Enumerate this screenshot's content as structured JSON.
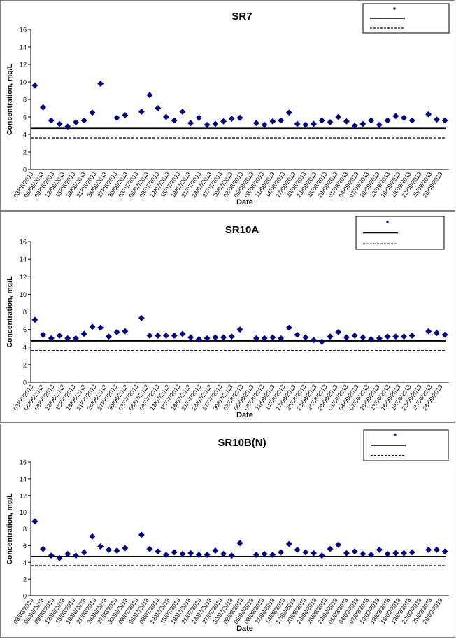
{
  "charts": [
    {
      "title": "SR7",
      "ylabel": "Concentration, mg/L",
      "xlabel": "Date",
      "ylim": [
        0,
        16
      ],
      "yticks": [
        0,
        2,
        4,
        6,
        8,
        10,
        12,
        14,
        16
      ],
      "xtick_labels": [
        "03/06/2013",
        "06/06/2013",
        "09/06/2013",
        "12/06/2013",
        "15/06/2013",
        "18/06/2013",
        "21/06/2013",
        "24/06/2013",
        "27/06/2013",
        "30/06/2013",
        "03/07/2013",
        "06/07/2013",
        "09/07/2013",
        "12/07/2013",
        "15/07/2013",
        "18/07/2013",
        "21/07/2013",
        "24/07/2013",
        "27/07/2013",
        "30/07/2013",
        "02/08/2013",
        "05/08/2013",
        "08/08/2013",
        "11/08/2013",
        "14/08/2013",
        "17/08/2013",
        "20/08/2013",
        "23/08/2013",
        "26/08/2013",
        "29/08/2013",
        "01/09/2013",
        "04/09/2013",
        "07/09/2013",
        "10/09/2013",
        "13/09/2013",
        "16/09/2013",
        "19/09/2013",
        "22/09/2013",
        "25/09/2013",
        "28/09/2013"
      ],
      "legend_entries": [
        "",
        "",
        ""
      ],
      "upper_limit": 4.7,
      "lower_limit": 3.6,
      "series": [
        {
          "type": "scatter",
          "color": "#000080",
          "points": [
            [
              0,
              9.6
            ],
            [
              1,
              7.1
            ],
            [
              2,
              5.6
            ],
            [
              3,
              5.2
            ],
            [
              4,
              4.9
            ],
            [
              5,
              5.4
            ],
            [
              6,
              5.6
            ],
            [
              7,
              6.5
            ],
            [
              8,
              9.8
            ],
            [
              10,
              5.9
            ],
            [
              11,
              6.2
            ],
            [
              13,
              6.6
            ],
            [
              14,
              8.5
            ],
            [
              15,
              7.0
            ],
            [
              16,
              6.0
            ],
            [
              17,
              5.6
            ],
            [
              18,
              6.6
            ],
            [
              19,
              5.3
            ],
            [
              20,
              5.9
            ],
            [
              21,
              5.1
            ],
            [
              22,
              5.2
            ],
            [
              23,
              5.5
            ],
            [
              24,
              5.8
            ],
            [
              25,
              5.9
            ],
            [
              27,
              5.3
            ],
            [
              28,
              5.1
            ],
            [
              29,
              5.5
            ],
            [
              30,
              5.6
            ],
            [
              31,
              6.5
            ],
            [
              32,
              5.2
            ],
            [
              33,
              5.1
            ],
            [
              34,
              5.2
            ],
            [
              35,
              5.6
            ],
            [
              36,
              5.4
            ],
            [
              37,
              6.0
            ],
            [
              38,
              5.5
            ],
            [
              39,
              5.0
            ],
            [
              40,
              5.2
            ],
            [
              41,
              5.6
            ],
            [
              42,
              5.1
            ],
            [
              43,
              5.6
            ],
            [
              44,
              6.1
            ],
            [
              45,
              5.9
            ],
            [
              46,
              5.6
            ],
            [
              48,
              6.3
            ],
            [
              49,
              5.7
            ],
            [
              50,
              5.6
            ]
          ]
        }
      ]
    },
    {
      "title": "SR10A",
      "ylabel": "Concentration, mg/L",
      "xlabel": "Date",
      "ylim": [
        0,
        16
      ],
      "yticks": [
        0,
        2,
        4,
        6,
        8,
        10,
        12,
        14,
        16
      ],
      "xtick_labels": [
        "03/06/2013",
        "06/06/2013",
        "09/06/2013",
        "12/06/2013",
        "15/06/2013",
        "18/06/2013",
        "21/06/2013",
        "24/06/2013",
        "27/06/2013",
        "30/06/2013",
        "03/07/2013",
        "06/07/2013",
        "09/07/2013",
        "12/07/2013",
        "15/07/2013",
        "18/07/2013",
        "21/07/2013",
        "24/07/2013",
        "27/07/2013",
        "30/07/2013",
        "02/08/2013",
        "05/08/2013",
        "08/08/2013",
        "11/08/2013",
        "14/08/2013",
        "17/08/2013",
        "20/08/2013",
        "23/08/2013",
        "26/08/2013",
        "29/08/2013",
        "01/09/2013",
        "04/09/2013",
        "07/09/2013",
        "10/09/2013",
        "13/09/2013",
        "16/09/2013",
        "19/09/2013",
        "22/09/2013",
        "25/09/2013",
        "28/09/2013"
      ],
      "legend_entries": [
        "",
        "",
        ""
      ],
      "upper_limit": 4.7,
      "lower_limit": 3.6,
      "series": [
        {
          "type": "scatter",
          "color": "#000080",
          "points": [
            [
              0,
              7.1
            ],
            [
              1,
              5.4
            ],
            [
              2,
              5.0
            ],
            [
              3,
              5.3
            ],
            [
              4,
              5.0
            ],
            [
              5,
              5.0
            ],
            [
              6,
              5.5
            ],
            [
              7,
              6.3
            ],
            [
              8,
              6.2
            ],
            [
              9,
              5.2
            ],
            [
              10,
              5.7
            ],
            [
              11,
              5.8
            ],
            [
              13,
              7.3
            ],
            [
              14,
              5.3
            ],
            [
              15,
              5.3
            ],
            [
              16,
              5.3
            ],
            [
              17,
              5.3
            ],
            [
              18,
              5.5
            ],
            [
              19,
              5.1
            ],
            [
              20,
              4.9
            ],
            [
              21,
              5.0
            ],
            [
              22,
              5.1
            ],
            [
              23,
              5.1
            ],
            [
              24,
              5.2
            ],
            [
              25,
              6.0
            ],
            [
              27,
              5.0
            ],
            [
              28,
              5.0
            ],
            [
              29,
              5.1
            ],
            [
              30,
              5.0
            ],
            [
              31,
              6.2
            ],
            [
              32,
              5.4
            ],
            [
              33,
              5.1
            ],
            [
              34,
              4.8
            ],
            [
              35,
              4.6
            ],
            [
              36,
              5.2
            ],
            [
              37,
              5.7
            ],
            [
              38,
              5.1
            ],
            [
              39,
              5.3
            ],
            [
              40,
              5.1
            ],
            [
              41,
              4.9
            ],
            [
              42,
              5.0
            ],
            [
              43,
              5.2
            ],
            [
              44,
              5.2
            ],
            [
              45,
              5.2
            ],
            [
              46,
              5.3
            ],
            [
              48,
              5.8
            ],
            [
              49,
              5.6
            ],
            [
              50,
              5.4
            ]
          ]
        }
      ]
    },
    {
      "title": "SR10B(N)",
      "ylabel": "Concentration, mg/L",
      "xlabel": "Date",
      "ylim": [
        0,
        16
      ],
      "yticks": [
        0,
        2,
        4,
        6,
        8,
        10,
        12,
        14,
        16
      ],
      "xtick_labels": [
        "03/06/2013",
        "06/06/2013",
        "09/06/2013",
        "12/06/2013",
        "15/06/2013",
        "18/06/2013",
        "21/06/2013",
        "24/06/2013",
        "27/06/2013",
        "30/06/2013",
        "03/07/2013",
        "06/07/2013",
        "09/07/2013",
        "12/07/2013",
        "15/07/2013",
        "18/07/2013",
        "21/07/2013",
        "24/07/2013",
        "27/07/2013",
        "30/07/2013",
        "02/08/2013",
        "05/08/2013",
        "08/08/2013",
        "11/08/2013",
        "14/08/2013",
        "17/08/2013",
        "20/08/2013",
        "23/08/2013",
        "26/08/2013",
        "29/08/2013",
        "01/09/2013",
        "04/09/2013",
        "07/09/2013",
        "10/09/2013",
        "13/09/2013",
        "16/09/2013",
        "19/09/2013",
        "22/09/2013",
        "25/09/2013",
        "28/09/2013"
      ],
      "legend_entries": [
        "",
        "",
        ""
      ],
      "upper_limit": 4.7,
      "lower_limit": 3.6,
      "series": [
        {
          "type": "scatter",
          "color": "#000080",
          "points": [
            [
              0,
              8.9
            ],
            [
              1,
              5.6
            ],
            [
              2,
              4.8
            ],
            [
              3,
              4.5
            ],
            [
              4,
              5.0
            ],
            [
              5,
              4.8
            ],
            [
              6,
              5.2
            ],
            [
              7,
              7.1
            ],
            [
              8,
              5.9
            ],
            [
              9,
              5.5
            ],
            [
              10,
              5.4
            ],
            [
              11,
              5.7
            ],
            [
              13,
              7.3
            ],
            [
              14,
              5.6
            ],
            [
              15,
              5.3
            ],
            [
              16,
              4.9
            ],
            [
              17,
              5.2
            ],
            [
              18,
              5.0
            ],
            [
              19,
              5.1
            ],
            [
              20,
              4.9
            ],
            [
              21,
              4.9
            ],
            [
              22,
              5.4
            ],
            [
              23,
              5.0
            ],
            [
              24,
              4.8
            ],
            [
              25,
              6.3
            ],
            [
              27,
              4.9
            ],
            [
              28,
              5.0
            ],
            [
              29,
              4.9
            ],
            [
              30,
              5.2
            ],
            [
              31,
              6.2
            ],
            [
              32,
              5.5
            ],
            [
              33,
              5.2
            ],
            [
              34,
              5.1
            ],
            [
              35,
              4.8
            ],
            [
              36,
              5.6
            ],
            [
              37,
              6.1
            ],
            [
              38,
              5.1
            ],
            [
              39,
              5.3
            ],
            [
              40,
              5.0
            ],
            [
              41,
              4.9
            ],
            [
              42,
              5.5
            ],
            [
              43,
              5.0
            ],
            [
              44,
              5.1
            ],
            [
              45,
              5.1
            ],
            [
              46,
              5.2
            ],
            [
              48,
              5.5
            ],
            [
              49,
              5.5
            ],
            [
              50,
              5.3
            ]
          ]
        }
      ]
    }
  ]
}
